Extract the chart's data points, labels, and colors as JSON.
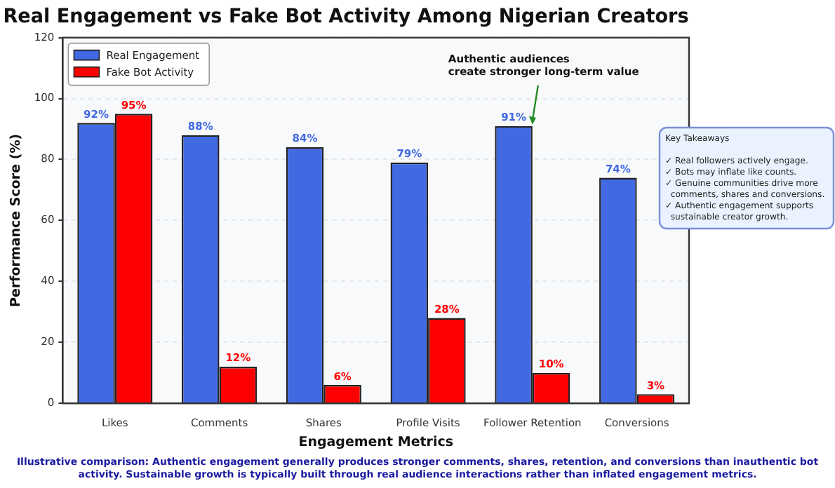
{
  "chart_data": {
    "type": "bar",
    "title": "Real Engagement vs Fake Bot Activity Among Nigerian Creators",
    "xlabel": "Engagement Metrics",
    "ylabel": "Performance Score (%)",
    "categories": [
      "Likes",
      "Comments",
      "Shares",
      "Profile Visits",
      "Follower Retention",
      "Conversions"
    ],
    "series": [
      {
        "name": "Real Engagement",
        "color": "#4169e1",
        "values": [
          92,
          88,
          84,
          79,
          91,
          74
        ],
        "value_labels": [
          "92%",
          "88%",
          "84%",
          "79%",
          "91%",
          "74%"
        ]
      },
      {
        "name": "Fake Bot Activity",
        "color": "#ff0000",
        "values": [
          95,
          12,
          6,
          28,
          10,
          3
        ],
        "value_labels": [
          "95%",
          "12%",
          "6%",
          "28%",
          "10%",
          "3%"
        ]
      }
    ],
    "ylim": [
      0,
      120
    ],
    "yticks": [
      0,
      20,
      40,
      60,
      80,
      100,
      120
    ],
    "grid": "y",
    "legend": "top left",
    "annotations": [
      {
        "text": "Authentic audiences\ncreate stronger long-term value",
        "x": "Follower Retention",
        "y": 91
      },
      "Key Takeaways\n\n✓ Real followers actively engage.\n✓ Bots may inflate like counts.\n✓ Genuine communities drive more\n  comments, shares and conversions.\n✓ Authentic engagement supports\n  sustainable creator growth.",
      "Illustrative comparison: Authentic engagement generally produces stronger comments, shares, retention, and conversions than inauthentic bot activity. Sustainable growth is typically built through real audience interactions rather than inflated engagement metrics."
    ]
  }
}
